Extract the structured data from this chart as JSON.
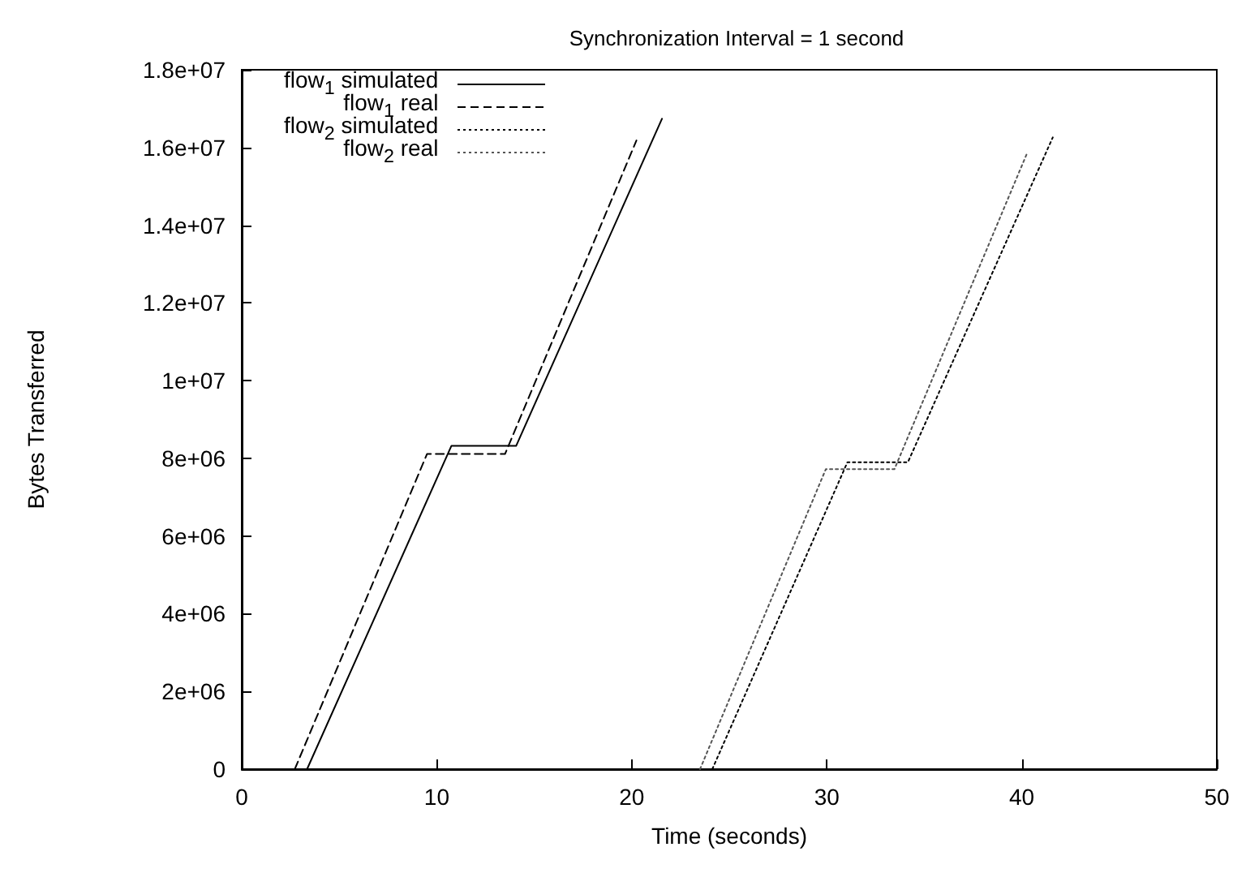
{
  "chart_data": {
    "type": "line",
    "title": "Synchronization Interval = 1 second",
    "xlabel": "Time (seconds)",
    "ylabel": "Bytes Transferred",
    "xlim": [
      0,
      50
    ],
    "xticks": [
      0,
      10,
      20,
      30,
      40,
      50
    ],
    "ylim": [
      0,
      18000000
    ],
    "yticks": [
      {
        "value": 0,
        "label": "0"
      },
      {
        "value": 2000000,
        "label": "2e+06"
      },
      {
        "value": 4000000,
        "label": "4e+06"
      },
      {
        "value": 6000000,
        "label": "6e+06"
      },
      {
        "value": 8000000,
        "label": "8e+06"
      },
      {
        "value": 10000000,
        "label": "1e+07"
      },
      {
        "value": 12000000,
        "label": "1.2e+07"
      },
      {
        "value": 14000000,
        "label": "1.4e+07"
      },
      {
        "value": 16000000,
        "label": "1.6e+07"
      },
      {
        "value": 18000000,
        "label": "1.8e+07"
      }
    ],
    "grid": false,
    "legend": "top left",
    "marker": "none",
    "series": [
      {
        "name": "flow$_{1}$ simulated",
        "color": "#000000",
        "line_style": "solid",
        "x": [
          3.35,
          10.75,
          14.07,
          21.55
        ],
        "values": [
          0,
          8320000,
          8320000,
          16740000
        ]
      },
      {
        "name": "flow$_{1}$ real",
        "color": "#000000",
        "line_style": "dashed",
        "x": [
          2.72,
          9.5,
          13.5,
          20.24
        ],
        "values": [
          0,
          8110000,
          8110000,
          16180000
        ]
      },
      {
        "name": "flow$_{2}$ simulated",
        "color": "#000000",
        "line_style": "dotted",
        "x": [
          24.13,
          31.06,
          34.16,
          41.59
        ],
        "values": [
          0,
          7900000,
          7900000,
          16260000
        ]
      },
      {
        "name": "flow$_{2}$ real",
        "color": "#555555",
        "line_style": "dotted",
        "x": [
          23.5,
          29.95,
          33.47,
          40.26
        ],
        "values": [
          0,
          7720000,
          7720000,
          15840000
        ]
      }
    ]
  }
}
